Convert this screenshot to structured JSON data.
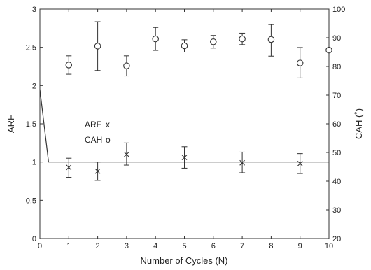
{
  "chart_data": {
    "type": "scatter",
    "title": "",
    "xlabel": "Number of Cycles (N)",
    "ylabel": "ARF",
    "y2label": "CAH (˚)",
    "xlim": [
      0,
      10
    ],
    "ylim": [
      0,
      3
    ],
    "y2lim": [
      20,
      100
    ],
    "x_ticks": [
      0,
      1,
      2,
      3,
      4,
      5,
      6,
      7,
      8,
      9,
      10
    ],
    "y_ticks": [
      0,
      0.5,
      1,
      1.5,
      2,
      2.5,
      3
    ],
    "y2_ticks": [
      20,
      30,
      40,
      50,
      60,
      70,
      80,
      90,
      100
    ],
    "grid": false,
    "legend": [
      {
        "label": "ARF",
        "marker": "x"
      },
      {
        "label": "CAH",
        "marker": "o"
      }
    ],
    "series": [
      {
        "name": "ARF",
        "marker": "x",
        "axis": "left",
        "x": [
          1,
          2,
          3,
          5,
          7,
          9
        ],
        "y": [
          0.93,
          0.88,
          1.1,
          1.06,
          0.99,
          0.98
        ],
        "err_low": [
          0.8,
          0.76,
          0.96,
          0.92,
          0.86,
          0.85
        ],
        "err_high": [
          1.05,
          1.0,
          1.25,
          1.2,
          1.13,
          1.11
        ]
      },
      {
        "name": "CAH",
        "marker": "o",
        "axis": "right",
        "x": [
          1,
          2,
          3,
          4,
          5,
          6,
          7,
          8,
          9,
          10
        ],
        "y": [
          80.5,
          87.1,
          80.2,
          89.6,
          87.2,
          88.6,
          89.6,
          89.4,
          81.2,
          85.7
        ],
        "err_low": [
          77.3,
          78.6,
          76.7,
          85.6,
          85.0,
          86.4,
          87.6,
          83.6,
          76.0,
          null
        ],
        "err_high": [
          83.7,
          95.6,
          83.7,
          93.6,
          89.3,
          90.8,
          91.6,
          94.6,
          86.6,
          null
        ]
      },
      {
        "name": "",
        "marker": "none",
        "line": true,
        "axis": "left",
        "x": [
          0,
          0.3,
          10
        ],
        "y": [
          1.95,
          1.0,
          1.0
        ]
      }
    ]
  }
}
